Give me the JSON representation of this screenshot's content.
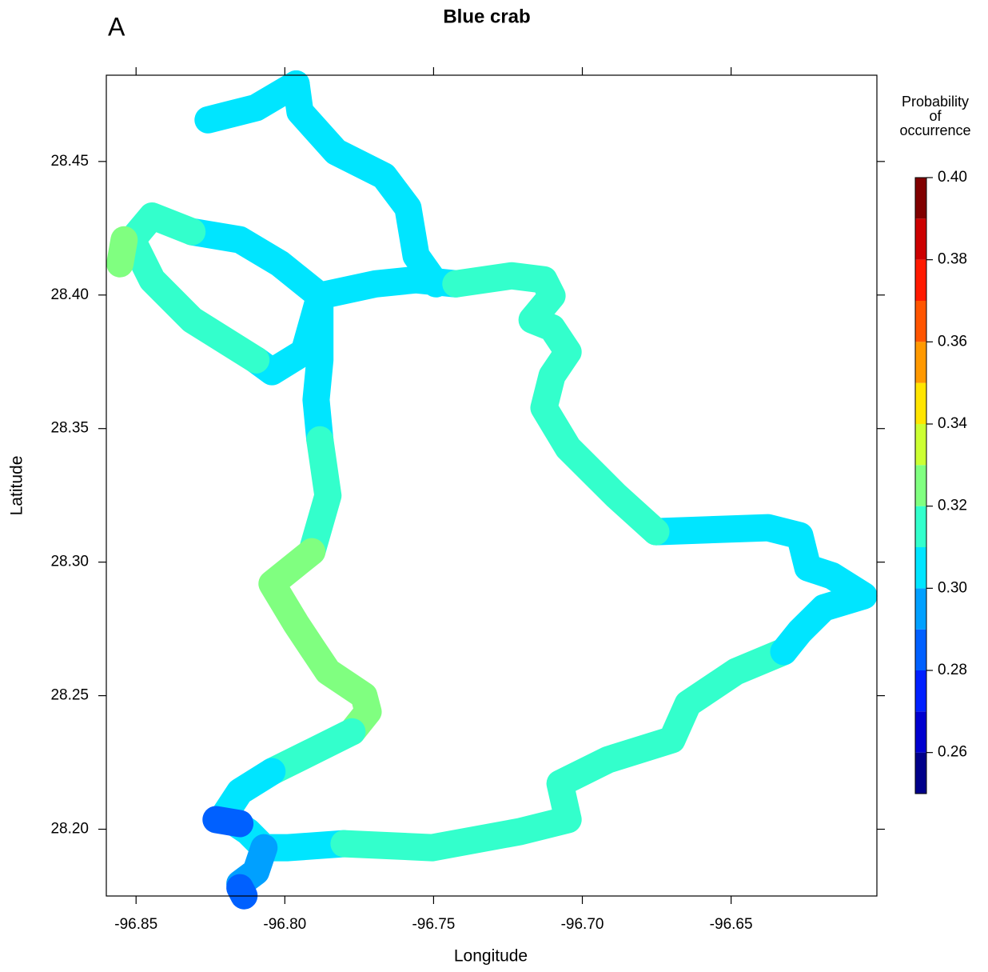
{
  "chart_data": {
    "type": "levelmap",
    "panel_label": "A",
    "title": "Blue crab",
    "xlabel": "Longitude",
    "ylabel": "Latitude",
    "xlim": [
      -96.86,
      -96.601
    ],
    "ylim": [
      28.175,
      28.4823
    ],
    "xticks": [
      -96.85,
      {
        "value": -96.8,
        "label": "-96.80"
      },
      -96.75,
      {
        "value": -96.7,
        "label": "-96.70"
      },
      -96.65
    ],
    "yticks": [
      {
        "value": 28.2,
        "label": "28.20"
      },
      28.25,
      {
        "value": 28.3,
        "label": "28.30"
      },
      28.35,
      {
        "value": 28.4,
        "label": "28.40"
      },
      28.45
    ],
    "colorbar_title": [
      "Probability",
      "of",
      "occurrence"
    ],
    "levels": [
      0.25,
      0.26,
      0.27,
      0.28,
      0.29,
      0.3,
      0.31,
      0.32,
      0.33,
      0.34,
      0.35,
      0.36,
      0.37,
      0.38,
      0.39,
      0.4
    ],
    "colors": [
      "#00008a",
      "#0000d0",
      "#0020ff",
      "#0060ff",
      "#00a0ff",
      "#00e5ff",
      "#33ffcc",
      "#80ff80",
      "#ccff33",
      "#ffe500",
      "#ff9900",
      "#ff5500",
      "#ff1a00",
      "#cc0000",
      "#800000"
    ],
    "colorbar_ticks": [
      0.26,
      0.28,
      {
        "value": 0.3,
        "label": "0.30"
      },
      0.32,
      0.34,
      0.36,
      0.38,
      {
        "value": 0.4,
        "label": "0.40"
      }
    ],
    "regions": [
      {
        "value": 0.305,
        "path": [
          [
            -96.8258,
            28.4656
          ],
          [
            -96.8097,
            28.4701
          ],
          [
            -96.7962,
            28.479
          ]
        ]
      },
      {
        "value": 0.305,
        "path": [
          [
            -96.7962,
            28.479
          ],
          [
            -96.7949,
            28.4686
          ],
          [
            -96.7828,
            28.4536
          ],
          [
            -96.7667,
            28.4446
          ],
          [
            -96.7586,
            28.4326
          ],
          [
            -96.7559,
            28.4147
          ],
          [
            -96.7492,
            28.4042
          ]
        ]
      },
      {
        "value": 0.305,
        "path": [
          [
            -96.8312,
            28.4237
          ],
          [
            -96.8151,
            28.4207
          ],
          [
            -96.8016,
            28.4117
          ],
          [
            -96.7882,
            28.3997
          ],
          [
            -96.7694,
            28.4042
          ],
          [
            -96.7559,
            28.4057
          ],
          [
            -96.7425,
            28.4042
          ]
        ]
      },
      {
        "value": 0.305,
        "path": [
          [
            -96.7882,
            28.3997
          ],
          [
            -96.7935,
            28.3787
          ],
          [
            -96.8043,
            28.3713
          ],
          [
            -96.8097,
            28.3757
          ]
        ]
      },
      {
        "value": 0.305,
        "path": [
          [
            -96.7882,
            28.3997
          ],
          [
            -96.7882,
            28.3757
          ],
          [
            -96.7895,
            28.3608
          ],
          [
            -96.7882,
            28.3458
          ]
        ]
      },
      {
        "value": 0.315,
        "path": [
          [
            -96.8312,
            28.4237
          ],
          [
            -96.8446,
            28.4296
          ],
          [
            -96.8513,
            28.4207
          ],
          [
            -96.8446,
            28.4057
          ],
          [
            -96.8312,
            28.3907
          ],
          [
            -96.8097,
            28.3757
          ]
        ]
      },
      {
        "value": 0.325,
        "path": [
          [
            -96.854,
            28.4207
          ],
          [
            -96.8554,
            28.4117
          ]
        ]
      },
      {
        "value": 0.315,
        "path": [
          [
            -96.7882,
            28.3458
          ],
          [
            -96.7855,
            28.3249
          ],
          [
            -96.7909,
            28.3039
          ]
        ]
      },
      {
        "value": 0.325,
        "path": [
          [
            -96.7909,
            28.3039
          ],
          [
            -96.8043,
            28.2919
          ],
          [
            -96.7962,
            28.2769
          ],
          [
            -96.7909,
            28.268
          ],
          [
            -96.7855,
            28.259
          ],
          [
            -96.7734,
            28.25
          ],
          [
            -96.772,
            28.244
          ],
          [
            -96.7774,
            28.2365
          ]
        ]
      },
      {
        "value": 0.315,
        "path": [
          [
            -96.7774,
            28.2365
          ],
          [
            -96.7909,
            28.229
          ],
          [
            -96.8043,
            28.2216
          ]
        ]
      },
      {
        "value": 0.305,
        "path": [
          [
            -96.8043,
            28.2216
          ],
          [
            -96.8151,
            28.2141
          ],
          [
            -96.8204,
            28.2051
          ],
          [
            -96.8124,
            28.1991
          ],
          [
            -96.807,
            28.1931
          ],
          [
            -96.7989,
            28.1931
          ],
          [
            -96.7801,
            28.1946
          ]
        ]
      },
      {
        "value": 0.315,
        "path": [
          [
            -96.7801,
            28.1946
          ],
          [
            -96.7505,
            28.1931
          ],
          [
            -96.721,
            28.1991
          ],
          [
            -96.7048,
            28.2036
          ],
          [
            -96.7075,
            28.2171
          ],
          [
            -96.6914,
            28.226
          ],
          [
            -96.6699,
            28.2335
          ],
          [
            -96.6645,
            28.247
          ],
          [
            -96.6484,
            28.259
          ],
          [
            -96.6323,
            28.2665
          ]
        ]
      },
      {
        "value": 0.305,
        "path": [
          [
            -96.6323,
            28.2665
          ],
          [
            -96.6269,
            28.274
          ],
          [
            -96.6188,
            28.2829
          ],
          [
            -96.6054,
            28.2874
          ],
          [
            -96.6161,
            28.2949
          ],
          [
            -96.6242,
            28.2979
          ],
          [
            -96.6269,
            28.3099
          ],
          [
            -96.6376,
            28.3129
          ],
          [
            -96.6753,
            28.3114
          ]
        ]
      },
      {
        "value": 0.315,
        "path": [
          [
            -96.6753,
            28.3114
          ],
          [
            -96.6887,
            28.3249
          ],
          [
            -96.7048,
            28.3428
          ],
          [
            -96.7129,
            28.3578
          ],
          [
            -96.7102,
            28.3698
          ],
          [
            -96.7048,
            28.3787
          ],
          [
            -96.7102,
            28.3877
          ],
          [
            -96.7169,
            28.3907
          ],
          [
            -96.7102,
            28.3997
          ],
          [
            -96.7129,
            28.4057
          ],
          [
            -96.7237,
            28.4072
          ],
          [
            -96.7425,
            28.4042
          ]
        ]
      },
      {
        "value": 0.295,
        "path": [
          [
            -96.807,
            28.1931
          ],
          [
            -96.8097,
            28.1841
          ],
          [
            -96.8151,
            28.1796
          ]
        ]
      },
      {
        "value": 0.285,
        "path": [
          [
            -96.8231,
            28.2036
          ],
          [
            -96.8151,
            28.2021
          ]
        ]
      },
      {
        "value": 0.285,
        "path": [
          [
            -96.8151,
            28.1781
          ],
          [
            -96.8137,
            28.1751
          ]
        ]
      }
    ]
  }
}
